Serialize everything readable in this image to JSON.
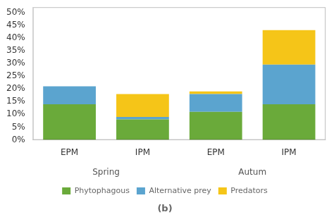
{
  "chart_data": {
    "type": "bar",
    "title": "(b)",
    "categories": [
      "EPM",
      "IPM",
      "EPM",
      "IPM"
    ],
    "annotations": [
      "Spring",
      "Autum"
    ],
    "series": [
      {
        "name": "Phytophagous",
        "color": "#6aaa3a",
        "values": [
          0.14,
          0.08,
          0.11,
          0.14
        ]
      },
      {
        "name": "Alternative prey",
        "color": "#5ba4cf",
        "values": [
          0.07,
          0.01,
          0.07,
          0.155
        ]
      },
      {
        "name": "Predators",
        "color": "#f5c518",
        "values": [
          0.0,
          0.09,
          0.01,
          0.135
        ]
      }
    ],
    "stacked": true,
    "ylim": [
      0,
      0.52
    ],
    "yticks": [
      {
        "value": 0.0,
        "label": "0%"
      },
      {
        "value": 0.05,
        "label": "5%"
      },
      {
        "value": 0.1,
        "label": "10%"
      },
      {
        "value": 0.15,
        "label": "15%"
      },
      {
        "value": 0.2,
        "label": "20%"
      },
      {
        "value": 0.25,
        "label": "25%"
      },
      {
        "value": 0.3,
        "label": "30%"
      },
      {
        "value": 0.35,
        "label": "35%"
      },
      {
        "value": 0.4,
        "label": "40%"
      },
      {
        "value": 0.45,
        "label": "45%"
      },
      {
        "value": 0.5,
        "label": "50%"
      }
    ],
    "grid": false,
    "legend": "bottom"
  }
}
